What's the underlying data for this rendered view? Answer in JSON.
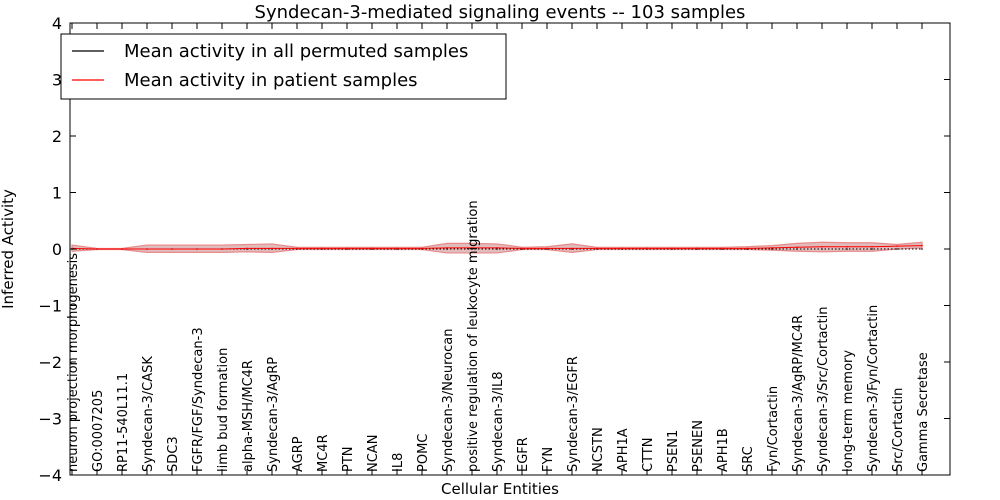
{
  "chart_data": {
    "type": "line",
    "title": "Syndecan-3-mediated signaling events -- 103 samples",
    "xlabel": "Cellular Entities",
    "ylabel": "Inferred Activity",
    "ylim": [
      -4,
      4
    ],
    "yticks": [
      "4",
      "3",
      "2",
      "1",
      "0",
      "−1",
      "−2",
      "−3",
      "−4"
    ],
    "categories": [
      "neuron projection morphogenesis",
      "GO:0007205",
      "RP11-540L11.1",
      "Syndecan-3/CASK",
      "SDC3",
      "FGFR/FGF/Syndecan-3",
      "limb bud formation",
      "alpha-MSH/MC4R",
      "Syndecan-3/AgRP",
      "AGRP",
      "MC4R",
      "PTN",
      "NCAN",
      "IL8",
      "POMC",
      "Syndecan-3/Neurocan",
      "positive regulation of leukocyte migration",
      "Syndecan-3/IL8",
      "EGFR",
      "FYN",
      "Syndecan-3/EGFR",
      "NCSTN",
      "APH1A",
      "CTTN",
      "PSEN1",
      "PSENEN",
      "APH1B",
      "SRC",
      "Fyn/Cortactin",
      "Syndecan-3/AgRP/MC4R",
      "Syndecan-3/Src/Cortactin",
      "long-term memory",
      "Syndecan-3/Fyn/Cortactin",
      "Src/Cortactin",
      "Gamma Secretase"
    ],
    "series": [
      {
        "name": "Mean activity in all permuted samples",
        "color": "#000000",
        "style": "dotted",
        "values": [
          0.0,
          0.0,
          0.0,
          0.0,
          0.0,
          0.0,
          0.0,
          0.0,
          0.0,
          0.0,
          0.0,
          0.0,
          0.0,
          0.0,
          0.0,
          0.0,
          0.0,
          0.0,
          0.0,
          0.0,
          0.0,
          0.0,
          0.0,
          0.0,
          0.0,
          0.0,
          0.0,
          0.0,
          0.0,
          0.0,
          0.0,
          0.0,
          0.0,
          0.0,
          0.0
        ]
      },
      {
        "name": "Mean activity in patient samples",
        "color": "#ff0000",
        "style": "solid",
        "values": [
          0.01,
          0.0,
          0.0,
          0.0,
          0.0,
          0.0,
          0.0,
          0.01,
          0.01,
          0.01,
          0.01,
          0.01,
          0.01,
          0.01,
          0.01,
          0.02,
          0.02,
          0.02,
          0.01,
          0.01,
          0.01,
          0.01,
          0.01,
          0.01,
          0.01,
          0.01,
          0.01,
          0.01,
          0.02,
          0.03,
          0.04,
          0.04,
          0.04,
          0.05,
          0.06
        ],
        "band_upper": [
          0.07,
          0.01,
          0.01,
          0.07,
          0.07,
          0.07,
          0.07,
          0.08,
          0.09,
          0.03,
          0.03,
          0.03,
          0.03,
          0.03,
          0.03,
          0.1,
          0.1,
          0.09,
          0.03,
          0.04,
          0.09,
          0.03,
          0.03,
          0.03,
          0.03,
          0.03,
          0.03,
          0.04,
          0.06,
          0.1,
          0.12,
          0.11,
          0.11,
          0.08,
          0.12
        ],
        "band_lower": [
          -0.04,
          -0.01,
          -0.01,
          -0.06,
          -0.06,
          -0.06,
          -0.06,
          -0.05,
          -0.06,
          -0.01,
          -0.01,
          -0.01,
          -0.01,
          -0.01,
          -0.01,
          -0.07,
          -0.07,
          -0.07,
          -0.01,
          -0.01,
          -0.06,
          -0.01,
          -0.01,
          -0.01,
          -0.01,
          -0.01,
          -0.01,
          -0.01,
          -0.02,
          -0.04,
          -0.05,
          -0.04,
          -0.04,
          0.0,
          0.02
        ]
      }
    ],
    "legend": "top-left",
    "band_color": "#d6a6a6",
    "band_highlight": "#e88a8a"
  }
}
